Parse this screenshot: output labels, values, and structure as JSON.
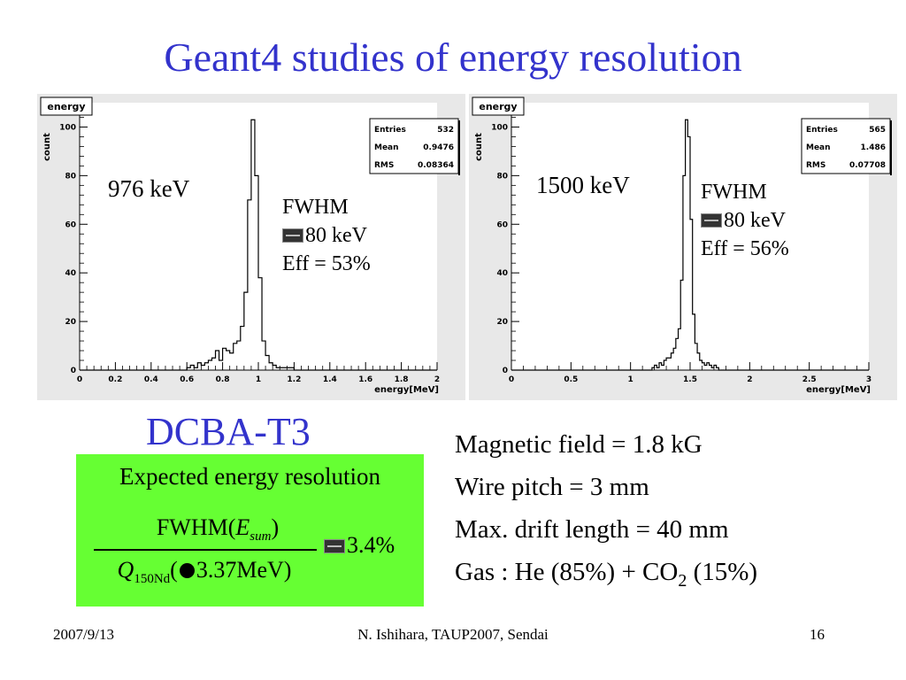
{
  "title": "Geant4 studies of energy resolution",
  "chart_data": [
    {
      "type": "bar",
      "title": "energy",
      "xlabel": "energy[MeV]",
      "ylabel": "count",
      "xlim": [
        0,
        2
      ],
      "ylim": [
        0,
        110
      ],
      "xticks": [
        "0",
        "0.2",
        "0.4",
        "0.6",
        "0.8",
        "1",
        "1.2",
        "1.4",
        "1.6",
        "1.8",
        "2"
      ],
      "yticks": [
        "0",
        "20",
        "40",
        "60",
        "80",
        "100"
      ],
      "stats": {
        "entries_label": "Entries",
        "entries": "532",
        "mean_label": "Mean",
        "mean": "0.9476",
        "rms_label": "RMS",
        "rms": "0.08364"
      },
      "bin_width": 0.02,
      "bins_start": [
        0.6,
        0.62,
        0.64,
        0.66,
        0.68,
        0.7,
        0.72,
        0.74,
        0.76,
        0.78,
        0.8,
        0.82,
        0.84,
        0.86,
        0.88,
        0.9,
        0.92,
        0.94,
        0.96,
        0.98,
        1.0,
        1.02,
        1.04,
        1.06,
        1.08,
        1.1,
        1.12,
        1.14,
        1.16,
        1.18
      ],
      "counts": [
        1,
        2,
        1,
        3,
        2,
        3,
        4,
        5,
        8,
        4,
        9,
        8,
        7,
        11,
        12,
        18,
        32,
        70,
        103,
        80,
        38,
        12,
        6,
        3,
        2,
        1,
        1,
        1,
        1,
        1
      ],
      "annotation_energy": "976 keV",
      "fwhm_label": "FWHM",
      "fwhm_value": "80 keV",
      "eff": "Eff = 53%"
    },
    {
      "type": "bar",
      "title": "energy",
      "xlabel": "energy[MeV]",
      "ylabel": "count",
      "xlim": [
        0,
        3
      ],
      "ylim": [
        0,
        110
      ],
      "xticks": [
        "0",
        "0.5",
        "1",
        "1.5",
        "2",
        "2.5",
        "3"
      ],
      "yticks": [
        "0",
        "20",
        "40",
        "60",
        "80",
        "100"
      ],
      "stats": {
        "entries_label": "Entries",
        "entries": "565",
        "mean_label": "Mean",
        "mean": "1.486",
        "rms_label": "RMS",
        "rms": "0.07708"
      },
      "bin_width": 0.02,
      "bins_start": [
        1.18,
        1.2,
        1.22,
        1.24,
        1.26,
        1.28,
        1.3,
        1.32,
        1.34,
        1.36,
        1.38,
        1.4,
        1.42,
        1.44,
        1.46,
        1.48,
        1.5,
        1.52,
        1.54,
        1.56,
        1.58,
        1.6,
        1.62,
        1.64,
        1.66,
        1.68,
        1.7,
        1.72
      ],
      "counts": [
        1,
        2,
        1,
        3,
        2,
        4,
        5,
        5,
        7,
        9,
        13,
        17,
        37,
        80,
        103,
        96,
        62,
        23,
        11,
        7,
        4,
        3,
        2,
        3,
        2,
        1,
        2,
        1
      ],
      "annotation_energy": "1500 keV",
      "fwhm_label": "FWHM",
      "fwhm_value": "80 keV",
      "eff": "Eff = 56%"
    }
  ],
  "detector_name": "DCBA-T3",
  "resolution_box": {
    "heading": "Expected energy resolution",
    "numerator_prefix": "FWHM(",
    "numerator_var": "E",
    "numerator_sub": "sum",
    "numerator_suffix": ")",
    "denominator_var": "Q",
    "denominator_sub": "150Nd",
    "denominator_open": "(",
    "denominator_value": "3.37MeV)",
    "result": "3.4%",
    "background_color": "#66ff33"
  },
  "parameters": [
    "Magnetic field = 1.8 kG",
    "Wire pitch = 3 mm",
    "Max. drift length = 40 mm"
  ],
  "gas_line": {
    "prefix": "Gas : He (85%) + CO",
    "subscript": "2",
    "suffix": " (15%)"
  },
  "footer": {
    "date": "2007/9/13",
    "center": "N. Ishihara, TAUP2007, Sendai",
    "page": "16"
  },
  "colors": {
    "title": "#3333cc",
    "highlight": "#66ff33",
    "panel_bg": "#e8e8e8"
  }
}
